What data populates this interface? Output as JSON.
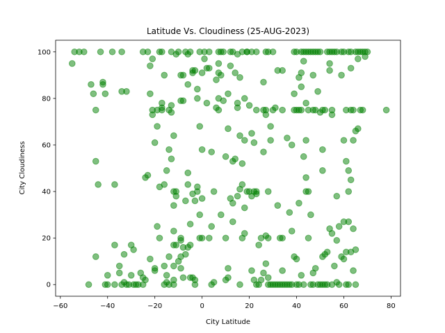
{
  "chart_data": {
    "type": "scatter",
    "title": "Latitude Vs. Cloudiness (25-AUG-2023)",
    "xlabel": "City Latitude",
    "ylabel": "City Cloudiness",
    "xlim": [
      -62,
      84
    ],
    "ylim": [
      -5,
      105
    ],
    "xticks": [
      -60,
      -40,
      -20,
      0,
      20,
      40,
      60,
      80
    ],
    "yticks": [
      0,
      20,
      40,
      60,
      80,
      100
    ],
    "grid": false,
    "marker_color": "#008000",
    "marker_alpha": 0.5,
    "points": [
      [
        -55,
        95
      ],
      [
        -54,
        100
      ],
      [
        -52,
        100
      ],
      [
        -50,
        100
      ],
      [
        -48,
        0
      ],
      [
        -47,
        86
      ],
      [
        -46,
        82
      ],
      [
        -45,
        75
      ],
      [
        -45,
        53
      ],
      [
        -45,
        12
      ],
      [
        -44,
        43
      ],
      [
        -43,
        100
      ],
      [
        -42,
        86
      ],
      [
        -42,
        87
      ],
      [
        -41,
        82
      ],
      [
        -41,
        0
      ],
      [
        -40,
        4
      ],
      [
        -40,
        0
      ],
      [
        -38,
        100
      ],
      [
        -37,
        43
      ],
      [
        -37,
        17
      ],
      [
        -37,
        0
      ],
      [
        -35,
        5
      ],
      [
        -35,
        8
      ],
      [
        -34,
        100
      ],
      [
        -34,
        83
      ],
      [
        -34,
        0
      ],
      [
        -33,
        1
      ],
      [
        -33,
        13
      ],
      [
        -32,
        83
      ],
      [
        -32,
        0
      ],
      [
        -31,
        0
      ],
      [
        -30,
        4
      ],
      [
        -30,
        17
      ],
      [
        -29,
        15
      ],
      [
        -29,
        0
      ],
      [
        -28,
        0
      ],
      [
        -27,
        0
      ],
      [
        -26,
        5
      ],
      [
        -25,
        100
      ],
      [
        -25,
        3
      ],
      [
        -25,
        0
      ],
      [
        -24,
        46
      ],
      [
        -24,
        2
      ],
      [
        -23,
        47
      ],
      [
        -23,
        100
      ],
      [
        -22,
        94
      ],
      [
        -22,
        82
      ],
      [
        -22,
        11
      ],
      [
        -21,
        97
      ],
      [
        -21,
        75
      ],
      [
        -21,
        73
      ],
      [
        -20,
        61
      ],
      [
        -20,
        6
      ],
      [
        -20,
        7
      ],
      [
        -19,
        75
      ],
      [
        -19,
        68
      ],
      [
        -19,
        25
      ],
      [
        -18,
        20
      ],
      [
        -18,
        42
      ],
      [
        -18,
        100
      ],
      [
        -17,
        78
      ],
      [
        -17,
        75
      ],
      [
        -17,
        76
      ],
      [
        -17,
        100
      ],
      [
        -16,
        90
      ],
      [
        -16,
        43
      ],
      [
        -16,
        8
      ],
      [
        -16,
        0
      ],
      [
        -15,
        49
      ],
      [
        -15,
        4
      ],
      [
        -15,
        1
      ],
      [
        -14,
        75
      ],
      [
        -14,
        58
      ],
      [
        -14,
        12
      ],
      [
        -14,
        0
      ],
      [
        -13,
        54
      ],
      [
        -13,
        100
      ],
      [
        -13,
        74
      ],
      [
        -13,
        77
      ],
      [
        -12,
        64
      ],
      [
        -12,
        40
      ],
      [
        -12,
        34
      ],
      [
        -12,
        23
      ],
      [
        -12,
        17
      ],
      [
        -12,
        8
      ],
      [
        -12,
        2
      ],
      [
        -12,
        0
      ],
      [
        -11,
        99
      ],
      [
        -11,
        40
      ],
      [
        -11,
        38
      ],
      [
        -11,
        17
      ],
      [
        -10,
        10
      ],
      [
        -10,
        100
      ],
      [
        -9,
        90
      ],
      [
        -9,
        79
      ],
      [
        -9,
        20
      ],
      [
        -9,
        19
      ],
      [
        -9,
        12
      ],
      [
        -9,
        7
      ],
      [
        -8,
        79
      ],
      [
        -8,
        90
      ],
      [
        -8,
        16
      ],
      [
        -8,
        3
      ],
      [
        -7,
        100
      ],
      [
        -7,
        36
      ],
      [
        -7,
        13
      ],
      [
        -6,
        99
      ],
      [
        -6,
        86
      ],
      [
        -6,
        48
      ],
      [
        -6,
        43
      ],
      [
        -6,
        16
      ],
      [
        -5,
        100
      ],
      [
        -5,
        26
      ],
      [
        -5,
        17
      ],
      [
        -5,
        3
      ],
      [
        -4,
        91
      ],
      [
        -4,
        92
      ],
      [
        -4,
        39
      ],
      [
        -4,
        3
      ],
      [
        -3,
        92
      ],
      [
        -3,
        0
      ],
      [
        -3,
        36
      ],
      [
        -3,
        2
      ],
      [
        -2,
        84
      ],
      [
        -2,
        80
      ],
      [
        -2,
        40
      ],
      [
        -2,
        42
      ],
      [
        -1,
        100
      ],
      [
        -1,
        68
      ],
      [
        -1,
        30
      ],
      [
        -1,
        20
      ],
      [
        0,
        91
      ],
      [
        0,
        58
      ],
      [
        0,
        37
      ],
      [
        0,
        20
      ],
      [
        1,
        100
      ],
      [
        1,
        97
      ],
      [
        2,
        93
      ],
      [
        2,
        78
      ],
      [
        3,
        93
      ],
      [
        3,
        20
      ],
      [
        3,
        100
      ],
      [
        4,
        25
      ],
      [
        4,
        0
      ],
      [
        4,
        57
      ],
      [
        5,
        40
      ],
      [
        5,
        1
      ],
      [
        6,
        76
      ],
      [
        6,
        88
      ],
      [
        7,
        100
      ],
      [
        7,
        95
      ],
      [
        7,
        91
      ],
      [
        7,
        80
      ],
      [
        7,
        75
      ],
      [
        8,
        90
      ],
      [
        8,
        100
      ],
      [
        8,
        30
      ],
      [
        9,
        79
      ],
      [
        9,
        100
      ],
      [
        10,
        55
      ],
      [
        10,
        2
      ],
      [
        10,
        20
      ],
      [
        11,
        82
      ],
      [
        11,
        67
      ],
      [
        11,
        7
      ],
      [
        11,
        3
      ],
      [
        12,
        37
      ],
      [
        12,
        94
      ],
      [
        12,
        100
      ],
      [
        13,
        53
      ],
      [
        13,
        35
      ],
      [
        13,
        27
      ],
      [
        13,
        100
      ],
      [
        14,
        91
      ],
      [
        14,
        54
      ],
      [
        15,
        76
      ],
      [
        15,
        78
      ],
      [
        15,
        99
      ],
      [
        15,
        38
      ],
      [
        16,
        89
      ],
      [
        16,
        64
      ],
      [
        16,
        41
      ],
      [
        16,
        0
      ],
      [
        17,
        43
      ],
      [
        17,
        52
      ],
      [
        17,
        100
      ],
      [
        17,
        20
      ],
      [
        18,
        62
      ],
      [
        18,
        80
      ],
      [
        18,
        33
      ],
      [
        18,
        22
      ],
      [
        19,
        40
      ],
      [
        19,
        100
      ],
      [
        19,
        100
      ],
      [
        20,
        77
      ],
      [
        20,
        40
      ],
      [
        21,
        100
      ],
      [
        21,
        65
      ],
      [
        21,
        38
      ],
      [
        21,
        6
      ],
      [
        22,
        61
      ],
      [
        22,
        40
      ],
      [
        22,
        2
      ],
      [
        23,
        100
      ],
      [
        23,
        40
      ],
      [
        23,
        39
      ],
      [
        23,
        75
      ],
      [
        23,
        0
      ],
      [
        24,
        17
      ],
      [
        24,
        0
      ],
      [
        25,
        2
      ],
      [
        25,
        20
      ],
      [
        26,
        75
      ],
      [
        26,
        87
      ],
      [
        26,
        57
      ],
      [
        26,
        5
      ],
      [
        27,
        75
      ],
      [
        27,
        100
      ],
      [
        27,
        21
      ],
      [
        27,
        73
      ],
      [
        27,
        9
      ],
      [
        28,
        100
      ],
      [
        28,
        40
      ],
      [
        28,
        20
      ],
      [
        28,
        3
      ],
      [
        28,
        0
      ],
      [
        29,
        62
      ],
      [
        29,
        68
      ],
      [
        29,
        0
      ],
      [
        30,
        75
      ],
      [
        30,
        100
      ],
      [
        30,
        0
      ],
      [
        31,
        76
      ],
      [
        31,
        0
      ],
      [
        32,
        92
      ],
      [
        32,
        34
      ],
      [
        32,
        0
      ],
      [
        33,
        0
      ],
      [
        33,
        20
      ],
      [
        34,
        92
      ],
      [
        34,
        75
      ],
      [
        34,
        20
      ],
      [
        34,
        6
      ],
      [
        34,
        0
      ],
      [
        35,
        0
      ],
      [
        36,
        63
      ],
      [
        36,
        0
      ],
      [
        37,
        31
      ],
      [
        37,
        0
      ],
      [
        38,
        60
      ],
      [
        38,
        23
      ],
      [
        38,
        0
      ],
      [
        39,
        82
      ],
      [
        39,
        100
      ],
      [
        39,
        75
      ],
      [
        39,
        12
      ],
      [
        40,
        100
      ],
      [
        40,
        75
      ],
      [
        40,
        11
      ],
      [
        40,
        0
      ],
      [
        41,
        89
      ],
      [
        41,
        75
      ],
      [
        41,
        35
      ],
      [
        41,
        0
      ],
      [
        42,
        91
      ],
      [
        42,
        85
      ],
      [
        42,
        75
      ],
      [
        42,
        100
      ],
      [
        42,
        4
      ],
      [
        43,
        100
      ],
      [
        43,
        96
      ],
      [
        43,
        55
      ],
      [
        43,
        0
      ],
      [
        44,
        78
      ],
      [
        44,
        100
      ],
      [
        44,
        46
      ],
      [
        44,
        40
      ],
      [
        44,
        62
      ],
      [
        45,
        100
      ],
      [
        45,
        20
      ],
      [
        45,
        75
      ],
      [
        45,
        40
      ],
      [
        46,
        100
      ],
      [
        46,
        30
      ],
      [
        46,
        0
      ],
      [
        47,
        90
      ],
      [
        47,
        75
      ],
      [
        47,
        100
      ],
      [
        47,
        5
      ],
      [
        47,
        0
      ],
      [
        48,
        75
      ],
      [
        48,
        100
      ],
      [
        48,
        7
      ],
      [
        49,
        100
      ],
      [
        49,
        83
      ],
      [
        49,
        0
      ],
      [
        50,
        74
      ],
      [
        50,
        100
      ],
      [
        50,
        0
      ],
      [
        51,
        75
      ],
      [
        51,
        49
      ],
      [
        51,
        58
      ],
      [
        51,
        12
      ],
      [
        51,
        0
      ],
      [
        52,
        75
      ],
      [
        52,
        13
      ],
      [
        52,
        0
      ],
      [
        53,
        100
      ],
      [
        53,
        14
      ],
      [
        53,
        0
      ],
      [
        54,
        100
      ],
      [
        54,
        95
      ],
      [
        54,
        24
      ],
      [
        54,
        92
      ],
      [
        55,
        75
      ],
      [
        55,
        73
      ],
      [
        55,
        22
      ],
      [
        55,
        100
      ],
      [
        55,
        0
      ],
      [
        56,
        100
      ],
      [
        56,
        8
      ],
      [
        57,
        100
      ],
      [
        57,
        38
      ],
      [
        57,
        19
      ],
      [
        57,
        1
      ],
      [
        58,
        25
      ],
      [
        58,
        0
      ],
      [
        59,
        90
      ],
      [
        59,
        100
      ],
      [
        59,
        12
      ],
      [
        60,
        62
      ],
      [
        60,
        100
      ],
      [
        60,
        27
      ],
      [
        60,
        11
      ],
      [
        61,
        53
      ],
      [
        61,
        75
      ],
      [
        61,
        14
      ],
      [
        61,
        0
      ],
      [
        62,
        100
      ],
      [
        62,
        40
      ],
      [
        62,
        49
      ],
      [
        62,
        27
      ],
      [
        62,
        0
      ],
      [
        63,
        75
      ],
      [
        63,
        93
      ],
      [
        63,
        45
      ],
      [
        63,
        14
      ],
      [
        63,
        100
      ],
      [
        64,
        62
      ],
      [
        64,
        75
      ],
      [
        64,
        24
      ],
      [
        64,
        6
      ],
      [
        65,
        66
      ],
      [
        65,
        100
      ],
      [
        65,
        0
      ],
      [
        65,
        15
      ],
      [
        66,
        67
      ],
      [
        66,
        97
      ],
      [
        66,
        100
      ],
      [
        67,
        75
      ],
      [
        67,
        100
      ],
      [
        68,
        75
      ],
      [
        68,
        100
      ],
      [
        69,
        100
      ],
      [
        69,
        98
      ],
      [
        70,
        100
      ],
      [
        78,
        75
      ]
    ]
  }
}
